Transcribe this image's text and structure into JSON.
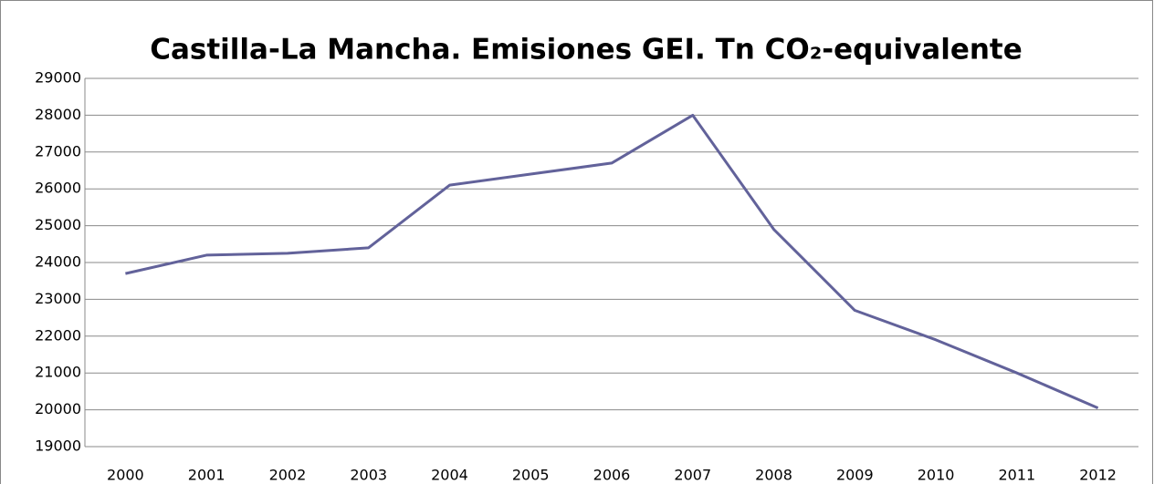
{
  "chart_data": {
    "type": "line",
    "title": "Castilla-La Mancha. Emisiones GEI. Tn CO₂-equivalente",
    "categories": [
      "2000",
      "2001",
      "2002",
      "2003",
      "2004",
      "2005",
      "2006",
      "2007",
      "2008",
      "2009",
      "2010",
      "2011",
      "2012"
    ],
    "series": [
      {
        "color": "#62629a",
        "values": [
          23700,
          24200,
          24250,
          24400,
          26100,
          26400,
          26700,
          28000,
          24900,
          22700,
          21900,
          21000,
          20050
        ]
      }
    ],
    "ylim": [
      19000,
      29000
    ],
    "yticks": [
      19000,
      20000,
      21000,
      22000,
      23000,
      24000,
      25000,
      26000,
      27000,
      28000,
      29000
    ],
    "grid": true
  }
}
